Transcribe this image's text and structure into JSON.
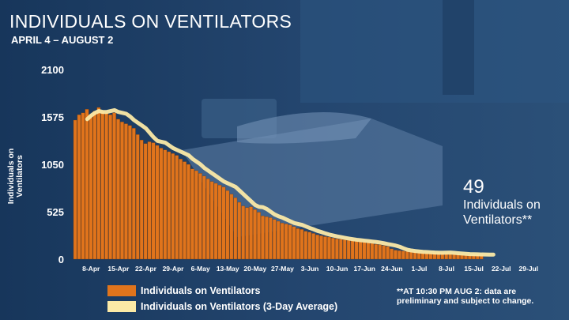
{
  "title": "INDIVIDUALS ON VENTILATORS",
  "subtitle": "APRIL 4 – AUGUST 2",
  "callout": {
    "value": "49",
    "label": "Individuals on Ventilators**"
  },
  "legend": {
    "bars": "Individuals on Ventilators",
    "line": "Individuals on Ventilators (3-Day Average)"
  },
  "note": "**AT 10:30 PM AUG 2: data are preliminary and subject to change.",
  "colors": {
    "background": "#1f3d63",
    "bar": "#e0741c",
    "line": "#fbe9a6"
  },
  "chart_data": {
    "type": "bar",
    "ylabel": "Individuals on Ventilators",
    "ylim": [
      0,
      2100
    ],
    "yticks": [
      0,
      525,
      1050,
      1575,
      2100
    ],
    "xtick_labels": [
      "8-Apr",
      "15-Apr",
      "22-Apr",
      "29-Apr",
      "6-May",
      "13-May",
      "20-May",
      "27-May",
      "3-Jun",
      "10-Jun",
      "17-Jun",
      "24-Jun",
      "1-Jul",
      "8-Jul",
      "15-Jul",
      "22-Jul",
      "29-Jul"
    ],
    "first_date": "4-Apr",
    "last_date": "2-Aug",
    "series": [
      {
        "name": "Individuals on Ventilators",
        "kind": "bar",
        "values": [
          1540,
          1600,
          1620,
          1660,
          1600,
          1640,
          1680,
          1640,
          1620,
          1600,
          1620,
          1550,
          1520,
          1500,
          1480,
          1450,
          1380,
          1320,
          1280,
          1300,
          1290,
          1260,
          1230,
          1210,
          1190,
          1170,
          1150,
          1110,
          1080,
          1050,
          1000,
          980,
          950,
          920,
          890,
          860,
          840,
          820,
          800,
          760,
          720,
          680,
          630,
          590,
          570,
          580,
          550,
          520,
          480,
          470,
          460,
          440,
          420,
          400,
          390,
          380,
          360,
          340,
          330,
          310,
          300,
          285,
          270,
          260,
          250,
          245,
          235,
          225,
          220,
          215,
          210,
          205,
          200,
          195,
          190,
          185,
          175,
          165,
          160,
          150,
          140,
          115,
          100,
          95,
          90,
          85,
          80,
          80,
          75,
          72,
          70,
          70,
          72,
          75,
          70,
          65,
          60,
          58,
          55,
          55,
          53,
          52,
          50,
          50,
          49
        ],
        "color": "#e0741c"
      },
      {
        "name": "Individuals on Ventilators (3-Day Average)",
        "kind": "line",
        "values": [
          1550,
          1590,
          1620,
          1640,
          1630,
          1630,
          1640,
          1650,
          1630,
          1620,
          1610,
          1580,
          1540,
          1510,
          1480,
          1450,
          1400,
          1350,
          1310,
          1300,
          1290,
          1260,
          1230,
          1210,
          1190,
          1170,
          1150,
          1110,
          1080,
          1050,
          1010,
          980,
          950,
          920,
          890,
          860,
          840,
          820,
          800,
          760,
          720,
          680,
          640,
          600,
          580,
          575,
          555,
          525,
          495,
          475,
          460,
          440,
          420,
          400,
          390,
          380,
          362,
          345,
          330,
          312,
          300,
          285,
          272,
          262,
          252,
          244,
          236,
          228,
          221,
          215,
          210,
          205,
          200,
          195,
          190,
          184,
          176,
          167,
          159,
          150,
          138,
          120,
          104,
          96,
          90,
          85,
          81,
          79,
          76,
          73,
          71,
          71,
          72,
          73,
          70,
          66,
          62,
          59,
          56,
          55,
          54,
          52,
          51,
          50,
          50
        ],
        "color": "#fbe9a6"
      }
    ]
  }
}
